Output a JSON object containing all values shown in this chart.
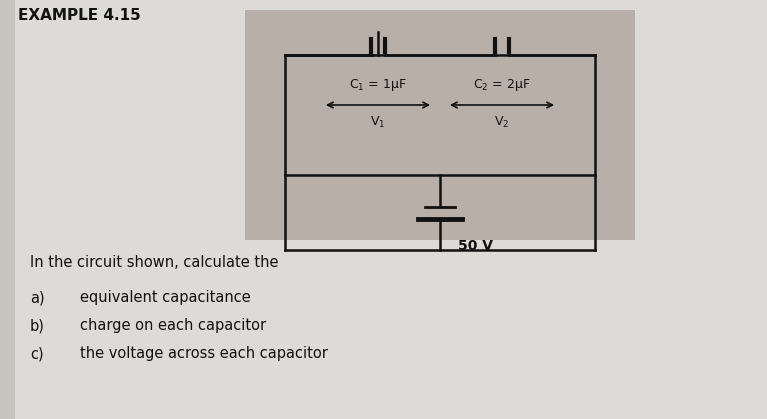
{
  "title": "EXAMPLE 4.15",
  "bg_outer": "#c8c4c0",
  "bg_page": "#dddbd8",
  "bg_circuit": "#b8b0a8",
  "cap1_label": "C$_1$ = 1μF",
  "cap2_label": "C$_2$ = 2μF",
  "v1_label": "V$_1$",
  "v2_label": "V$_2$",
  "voltage_label": "50 V",
  "text_main": "In the circuit shown, calculate the",
  "items": [
    "equivalent capacitance",
    "charge on each capacitor",
    "the voltage across each capacitor"
  ],
  "labels": [
    "a)",
    "b)",
    "c)"
  ],
  "line_color": "#111111",
  "text_color": "#111111"
}
